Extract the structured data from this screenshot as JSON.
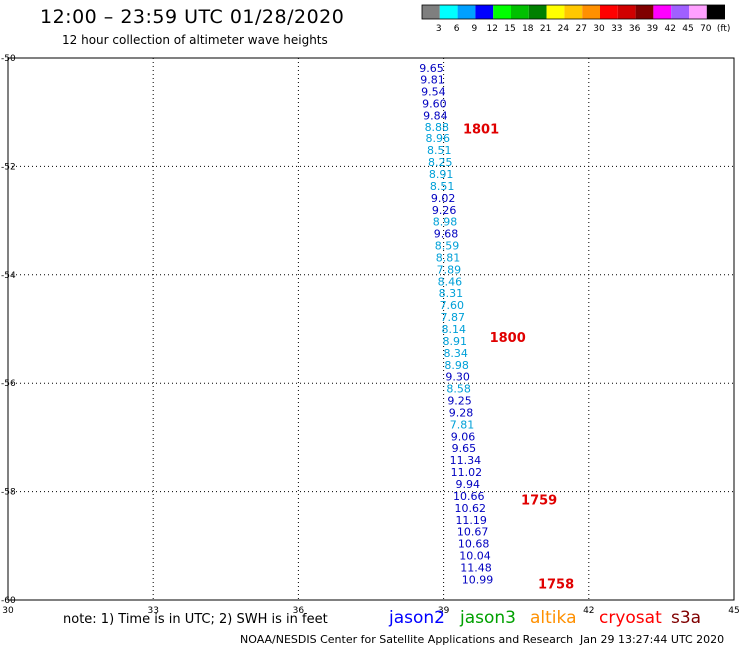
{
  "header": {
    "title": "12:00 – 23:59 UTC 01/28/2020",
    "subtitle": "12 hour collection of altimeter wave heights"
  },
  "colorbar": {
    "labels": [
      "3",
      "6",
      "9",
      "12",
      "15",
      "18",
      "21",
      "24",
      "27",
      "30",
      "33",
      "36",
      "39",
      "42",
      "45",
      "70",
      "(ft)"
    ],
    "colors": [
      "#7f7f7f",
      "#00ffff",
      "#00a0ff",
      "#0000ff",
      "#00ff00",
      "#00c000",
      "#008000",
      "#ffff00",
      "#ffc800",
      "#ff9000",
      "#ff0000",
      "#d00000",
      "#800000",
      "#ff00ff",
      "#a060ff",
      "#ffa0ff",
      "#000000"
    ]
  },
  "footer": {
    "note": "note:  1) Time is in UTC;  2) SWH is in feet",
    "satellites": [
      {
        "name": "jason2",
        "color": "#0000ff"
      },
      {
        "name": "jason3",
        "color": "#00a000"
      },
      {
        "name": "altika",
        "color": "#ff9000"
      },
      {
        "name": "cryosat",
        "color": "#ff0000"
      },
      {
        "name": "s3a",
        "color": "#800000"
      }
    ],
    "credit": "NOAA/NESDIS Center for Satellite Applications and Research",
    "timestamp": "Jan 29 13:27:44 UTC 2020"
  },
  "chart_data": {
    "type": "scatter",
    "xlim": [
      30,
      45
    ],
    "ylim": [
      -60,
      -50
    ],
    "xticks": [
      "30",
      "33",
      "36",
      "39",
      "42",
      "45"
    ],
    "yticks": [
      "-50",
      "-52",
      "-54",
      "-56",
      "-58",
      "-60"
    ],
    "grid": true,
    "points": [
      {
        "x": 38.75,
        "y": -50.18,
        "v": "9.65",
        "color": "#0000c0"
      },
      {
        "x": 38.77,
        "y": -50.4,
        "v": "9.81",
        "color": "#0000c0"
      },
      {
        "x": 38.79,
        "y": -50.62,
        "v": "9.54",
        "color": "#0000c0"
      },
      {
        "x": 38.81,
        "y": -50.84,
        "v": "9.60",
        "color": "#0000c0"
      },
      {
        "x": 38.83,
        "y": -51.06,
        "v": "9.84",
        "color": "#0000c0"
      },
      {
        "x": 38.86,
        "y": -51.27,
        "v": "8.88",
        "color": "#00a0d8"
      },
      {
        "x": 38.88,
        "y": -51.48,
        "v": "8.96",
        "color": "#00a0d8"
      },
      {
        "x": 38.91,
        "y": -51.7,
        "v": "8.51",
        "color": "#00a0d8"
      },
      {
        "x": 38.93,
        "y": -51.92,
        "v": "8.25",
        "color": "#00a0d8"
      },
      {
        "x": 38.95,
        "y": -52.14,
        "v": "8.91",
        "color": "#00a0d8"
      },
      {
        "x": 38.97,
        "y": -52.36,
        "v": "8.51",
        "color": "#00a0d8"
      },
      {
        "x": 38.99,
        "y": -52.58,
        "v": "9.02",
        "color": "#0000c0"
      },
      {
        "x": 39.01,
        "y": -52.8,
        "v": "9.26",
        "color": "#0000c0"
      },
      {
        "x": 39.03,
        "y": -53.02,
        "v": "8.98",
        "color": "#00a0d8"
      },
      {
        "x": 39.05,
        "y": -53.24,
        "v": "9.68",
        "color": "#0000c0"
      },
      {
        "x": 39.07,
        "y": -53.46,
        "v": "8.59",
        "color": "#00a0d8"
      },
      {
        "x": 39.09,
        "y": -53.68,
        "v": "8.81",
        "color": "#00a0d8"
      },
      {
        "x": 39.11,
        "y": -53.9,
        "v": "7.89",
        "color": "#00a0d8"
      },
      {
        "x": 39.13,
        "y": -54.12,
        "v": "8.46",
        "color": "#00a0d8"
      },
      {
        "x": 39.15,
        "y": -54.34,
        "v": "8.31",
        "color": "#00a0d8"
      },
      {
        "x": 39.17,
        "y": -54.56,
        "v": "7.60",
        "color": "#00a0d8"
      },
      {
        "x": 39.19,
        "y": -54.78,
        "v": "7.87",
        "color": "#00a0d8"
      },
      {
        "x": 39.21,
        "y": -55.0,
        "v": "8.14",
        "color": "#00a0d8"
      },
      {
        "x": 39.23,
        "y": -55.22,
        "v": "8.91",
        "color": "#00a0d8"
      },
      {
        "x": 39.25,
        "y": -55.44,
        "v": "8.34",
        "color": "#00a0d8"
      },
      {
        "x": 39.27,
        "y": -55.66,
        "v": "8.98",
        "color": "#00a0d8"
      },
      {
        "x": 39.29,
        "y": -55.88,
        "v": "9.30",
        "color": "#0000c0"
      },
      {
        "x": 39.31,
        "y": -56.1,
        "v": "8.58",
        "color": "#00a0d8"
      },
      {
        "x": 39.33,
        "y": -56.32,
        "v": "9.25",
        "color": "#0000c0"
      },
      {
        "x": 39.36,
        "y": -56.54,
        "v": "9.28",
        "color": "#0000c0"
      },
      {
        "x": 39.38,
        "y": -56.76,
        "v": "7.81",
        "color": "#00a0d8"
      },
      {
        "x": 39.4,
        "y": -56.98,
        "v": "9.06",
        "color": "#0000c0"
      },
      {
        "x": 39.42,
        "y": -57.2,
        "v": "9.65",
        "color": "#0000c0"
      },
      {
        "x": 39.45,
        "y": -57.42,
        "v": "11.34",
        "color": "#0000c0"
      },
      {
        "x": 39.47,
        "y": -57.64,
        "v": "11.02",
        "color": "#0000c0"
      },
      {
        "x": 39.5,
        "y": -57.86,
        "v": "9.94",
        "color": "#0000c0"
      },
      {
        "x": 39.52,
        "y": -58.08,
        "v": "10.66",
        "color": "#0000c0"
      },
      {
        "x": 39.55,
        "y": -58.3,
        "v": "10.62",
        "color": "#0000c0"
      },
      {
        "x": 39.57,
        "y": -58.52,
        "v": "11.19",
        "color": "#0000c0"
      },
      {
        "x": 39.6,
        "y": -58.74,
        "v": "10.67",
        "color": "#0000c0"
      },
      {
        "x": 39.62,
        "y": -58.96,
        "v": "10.68",
        "color": "#0000c0"
      },
      {
        "x": 39.65,
        "y": -59.18,
        "v": "10.04",
        "color": "#0000c0"
      },
      {
        "x": 39.67,
        "y": -59.4,
        "v": "11.48",
        "color": "#0000c0"
      },
      {
        "x": 39.7,
        "y": -59.62,
        "v": "10.99",
        "color": "#0000c0"
      }
    ],
    "time_labels": [
      {
        "x": 39.4,
        "y": -51.3,
        "text": "1801"
      },
      {
        "x": 39.95,
        "y": -55.15,
        "text": "1800"
      },
      {
        "x": 40.6,
        "y": -58.15,
        "text": "1759"
      },
      {
        "x": 40.95,
        "y": -59.7,
        "text": "1758"
      }
    ]
  }
}
